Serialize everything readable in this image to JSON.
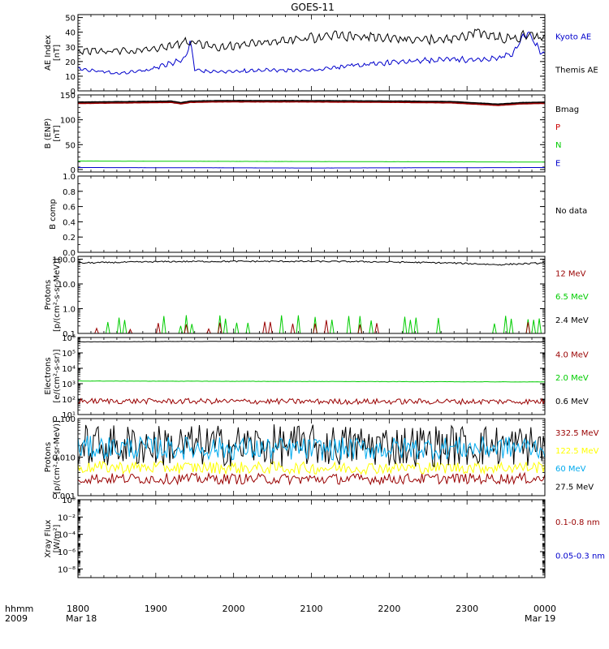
{
  "title": "GOES-11",
  "time_axis": {
    "ticks": [
      "1800",
      "1900",
      "2000",
      "2100",
      "2200",
      "2300",
      "0000"
    ],
    "start_date": "Mar 18",
    "end_date": "Mar 19",
    "left_label_top": "hhmm",
    "left_label_bottom": "2009"
  },
  "chart_data": [
    {
      "type": "line",
      "ylabel": "AE Index\n[nT]",
      "yscale": "linear",
      "ylim": [
        0,
        52
      ],
      "yticks": [
        0,
        10,
        20,
        30,
        40,
        50
      ],
      "yticklabels": [
        "0",
        "10",
        "20",
        "30",
        "40",
        "50"
      ],
      "minor_step": 2,
      "legend": [
        {
          "text": "Kyoto AE",
          "color": "#0000cc"
        },
        {
          "text": "Themis AE",
          "color": "#000000"
        }
      ],
      "series": [
        {
          "name": "Kyoto AE",
          "color": "#0000cc",
          "noise": 0.07,
          "gen": "osc",
          "x": [
            0,
            0.08,
            0.15,
            0.23,
            0.24,
            0.25,
            0.28,
            0.4,
            0.5,
            0.6,
            0.7,
            0.8,
            0.85,
            0.9,
            0.93,
            0.96,
            1.0
          ],
          "y": [
            15,
            12,
            14,
            22,
            35,
            15,
            13,
            14,
            14,
            18,
            20,
            22,
            21,
            22,
            26,
            40,
            24
          ]
        },
        {
          "name": "Themis AE",
          "color": "#000000",
          "noise": 0.07,
          "gen": "osc",
          "x": [
            0,
            0.08,
            0.15,
            0.23,
            0.25,
            0.3,
            0.4,
            0.5,
            0.55,
            0.6,
            0.7,
            0.8,
            0.85,
            0.9,
            0.93,
            0.96,
            1.0
          ],
          "y": [
            27,
            27,
            28,
            33,
            33,
            30,
            33,
            36,
            38,
            37,
            35,
            35,
            40,
            37,
            35,
            38,
            37
          ]
        }
      ]
    },
    {
      "type": "line",
      "ylabel": "B (ENP)\n[nT]",
      "yscale": "linear",
      "ylim": [
        -5,
        150
      ],
      "yticks": [
        0,
        50,
        100,
        150
      ],
      "yticklabels": [
        "0",
        "50",
        "100",
        "150"
      ],
      "minor_step": 10,
      "legend": [
        {
          "text": "Bmag",
          "color": "#000000"
        },
        {
          "text": "P",
          "color": "#cc0000"
        },
        {
          "text": "N",
          "color": "#00cc00"
        },
        {
          "text": "E",
          "color": "#0000cc"
        }
      ],
      "series": [
        {
          "name": "Bmag",
          "color": "#000000",
          "width": 2.2,
          "noise": 0.003,
          "gen": "smooth",
          "x": [
            0,
            0.1,
            0.2,
            0.22,
            0.24,
            0.3,
            0.5,
            0.7,
            0.8,
            0.9,
            0.95,
            1.0
          ],
          "y": [
            135,
            136,
            137,
            134,
            137,
            138,
            138,
            137,
            136,
            131,
            134,
            135
          ]
        },
        {
          "name": "P",
          "color": "#990000",
          "width": 1.6,
          "noise": 0.003,
          "gen": "smooth",
          "x": [
            0,
            0.1,
            0.2,
            0.22,
            0.24,
            0.3,
            0.5,
            0.7,
            0.8,
            0.9,
            0.95,
            1.0
          ],
          "y": [
            133,
            134,
            135,
            132,
            135,
            136,
            136,
            135,
            134,
            129,
            132,
            133
          ]
        },
        {
          "name": "N",
          "color": "#00cc00",
          "noise": 0.01,
          "gen": "smooth",
          "x": [
            0,
            0.5,
            1.0
          ],
          "y": [
            17,
            16,
            15
          ]
        },
        {
          "name": "E",
          "color": "#0000cc",
          "noise": 0.02,
          "gen": "smooth",
          "x": [
            0,
            0.5,
            1.0
          ],
          "y": [
            4,
            3,
            4
          ]
        }
      ]
    },
    {
      "type": "line",
      "ylabel": "B comp",
      "yscale": "linear",
      "ylim": [
        0,
        1
      ],
      "yticks": [
        0,
        0.2,
        0.4,
        0.6,
        0.8,
        1.0
      ],
      "yticklabels": [
        "0.0",
        "0.2",
        "0.4",
        "0.6",
        "0.8",
        "1.0"
      ],
      "minor_step": 0.1,
      "legend": [
        {
          "text": "No data",
          "color": "#000000"
        }
      ],
      "series": []
    },
    {
      "type": "line",
      "ylabel": "Protons\n[p/(cm²-s-sr-MeV)]",
      "yscale": "log",
      "ylim": [
        0.1,
        130
      ],
      "yticks": [
        0.1,
        1,
        10,
        100
      ],
      "yticklabels": [
        "0.1",
        "1.0",
        "10.0",
        "100.0"
      ],
      "legend": [
        {
          "text": "12 MeV",
          "color": "#990000"
        },
        {
          "text": "6.5 MeV",
          "color": "#00cc00"
        },
        {
          "text": "2.4 MeV",
          "color": "#000000"
        }
      ],
      "series": [
        {
          "name": "2.4 MeV",
          "color": "#000000",
          "noise": 0.03,
          "gen": "log",
          "x": [
            0,
            0.2,
            0.4,
            0.6,
            0.8,
            0.9,
            1.0
          ],
          "y": [
            70,
            80,
            82,
            80,
            70,
            60,
            70
          ]
        },
        {
          "name": "6.5 MeV",
          "color": "#00cc00",
          "gen": "spikes",
          "base": 0.1,
          "peak": [
            0.2,
            0.55
          ],
          "density": 0.45
        },
        {
          "name": "12 MeV",
          "color": "#990000",
          "gen": "spikes",
          "base": 0.1,
          "peak": [
            0.14,
            0.35
          ],
          "density": 0.12
        }
      ]
    },
    {
      "type": "line",
      "ylabel": "Electrons\n[e/(cm²-s-sr)]",
      "yscale": "log",
      "ylim": [
        10,
        1000000
      ],
      "yticks": [
        10,
        100,
        1000,
        10000,
        100000,
        1000000
      ],
      "yticklabels": [
        "10¹",
        "10²",
        "10³",
        "10⁴",
        "10⁵",
        "10⁶"
      ],
      "legend": [
        {
          "text": "4.0 MeV",
          "color": "#990000"
        },
        {
          "text": "2.0 MeV",
          "color": "#00cc00"
        },
        {
          "text": "0.6 MeV",
          "color": "#000000"
        }
      ],
      "series": [
        {
          "name": "0.6 MeV",
          "color": "#000000",
          "noise": 0.01,
          "gen": "log",
          "x": [
            0,
            0.3,
            0.5,
            0.8,
            1.0
          ],
          "y": [
            520000,
            560000,
            560000,
            540000,
            510000
          ]
        },
        {
          "name": "2.0 MeV",
          "color": "#00cc00",
          "noise": 0.01,
          "gen": "log",
          "x": [
            0,
            0.5,
            1.0
          ],
          "y": [
            1500,
            1400,
            1300
          ]
        },
        {
          "name": "4.0 MeV",
          "color": "#990000",
          "noise": 0.18,
          "gen": "log",
          "x": [
            0,
            0.5,
            1.0
          ],
          "y": [
            75,
            70,
            70
          ]
        }
      ]
    },
    {
      "type": "line",
      "ylabel": "Protons\n[p/(cm²-s-sr-MeV)]",
      "yscale": "log",
      "ylim": [
        0.001,
        0.1
      ],
      "yticks": [
        0.001,
        0.01,
        0.1
      ],
      "yticklabels": [
        "0.001",
        "0.010",
        "0.100"
      ],
      "legend": [
        {
          "text": "332.5 MeV",
          "color": "#990000"
        },
        {
          "text": "122.5 MeV",
          "color": "#ffff00"
        },
        {
          "text": "60 MeV",
          "color": "#00aaee"
        },
        {
          "text": "27.5 MeV",
          "color": "#000000"
        }
      ],
      "series": [
        {
          "name": "332.5 MeV",
          "color": "#990000",
          "noise": 0.14,
          "gen": "log",
          "x": [
            0,
            0.5,
            1.0
          ],
          "y": [
            0.0028,
            0.0027,
            0.0028
          ]
        },
        {
          "name": "122.5 MeV",
          "color": "#ffff00",
          "noise": 0.16,
          "gen": "log",
          "x": [
            0,
            0.5,
            1.0
          ],
          "y": [
            0.0055,
            0.0052,
            0.0055
          ]
        },
        {
          "name": "27.5 MeV",
          "color": "#000000",
          "noise": 0.55,
          "gen": "log",
          "x": [
            0,
            0.5,
            1.0
          ],
          "y": [
            0.02,
            0.02,
            0.02
          ]
        },
        {
          "name": "60 MeV",
          "color": "#00aaee",
          "noise": 0.3,
          "gen": "log",
          "x": [
            0,
            0.5,
            1.0
          ],
          "y": [
            0.018,
            0.016,
            0.018
          ]
        }
      ]
    },
    {
      "type": "line",
      "ylabel": "Xray  Flux\n[W/m²]",
      "yscale": "log",
      "ylim": [
        1e-09,
        1
      ],
      "yticks": [
        1e-08,
        1e-06,
        0.0001,
        0.01,
        1
      ],
      "yticklabels": [
        "10⁻⁸",
        "10⁻⁶",
        "10⁻⁴",
        "10⁻²",
        "10⁰"
      ],
      "legend": [
        {
          "text": "0.1-0.8 nm",
          "color": "#990000"
        },
        {
          "text": "0.05-0.3 nm",
          "color": "#0000cc"
        }
      ],
      "series": []
    }
  ]
}
